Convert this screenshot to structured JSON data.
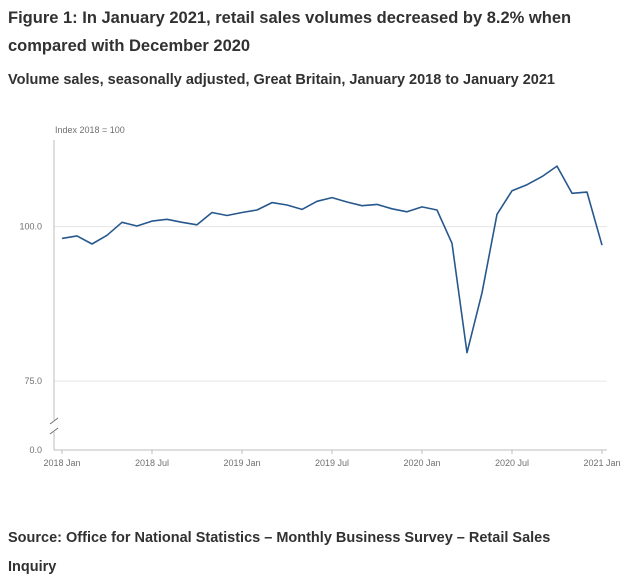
{
  "figure": {
    "title": "Figure 1: In January 2021, retail sales volumes decreased by 8.2% when compared with December 2020",
    "subtitle": "Volume sales, seasonally adjusted, Great Britain, January 2018 to January 2021",
    "source": "Source: Office for National Statistics – Monthly Business Survey – Retail Sales Inquiry"
  },
  "colors": {
    "line": "#27588d",
    "axis": "#bebebe",
    "grid": "#e6e6e6"
  },
  "chart_data": {
    "type": "line",
    "title": "Figure 1: In January 2021, retail sales volumes decreased by 8.2% when compared with December 2020",
    "subtitle": "Volume sales, seasonally adjusted, Great Britain, January 2018 to January 2021",
    "ylabel": "Index 2018 = 100",
    "xlabel": "",
    "y_axis_break": true,
    "y_ticks": [
      0.0,
      75.0,
      100.0
    ],
    "y_tick_labels": [
      "0.0",
      "75.0",
      "100.0"
    ],
    "ylim": [
      70,
      115
    ],
    "grid": true,
    "x_ticks": [
      "2018 Jan",
      "2018 Jul",
      "2019 Jan",
      "2019 Jul",
      "2020 Jan",
      "2020 Jul",
      "2021 Jan"
    ],
    "x": [
      "2018 Jan",
      "2018 Feb",
      "2018 Mar",
      "2018 Apr",
      "2018 May",
      "2018 Jun",
      "2018 Jul",
      "2018 Aug",
      "2018 Sep",
      "2018 Oct",
      "2018 Nov",
      "2018 Dec",
      "2019 Jan",
      "2019 Feb",
      "2019 Mar",
      "2019 Apr",
      "2019 May",
      "2019 Jun",
      "2019 Jul",
      "2019 Aug",
      "2019 Sep",
      "2019 Oct",
      "2019 Nov",
      "2019 Dec",
      "2020 Jan",
      "2020 Feb",
      "2020 Mar",
      "2020 Apr",
      "2020 May",
      "2020 Jun",
      "2020 Jul",
      "2020 Aug",
      "2020 Sep",
      "2020 Oct",
      "2020 Nov",
      "2020 Dec",
      "2021 Jan"
    ],
    "series": [
      {
        "values": [
          98.1,
          98.5,
          97.2,
          98.6,
          100.7,
          100.1,
          100.9,
          101.2,
          100.7,
          100.3,
          102.3,
          101.8,
          102.3,
          102.7,
          103.9,
          103.5,
          102.8,
          104.1,
          104.7,
          104.0,
          103.4,
          103.6,
          102.9,
          102.4,
          103.2,
          102.7,
          97.3,
          79.6,
          89.3,
          102.0,
          105.8,
          106.8,
          108.1,
          109.8,
          105.4,
          105.6,
          97.0
        ]
      }
    ]
  }
}
